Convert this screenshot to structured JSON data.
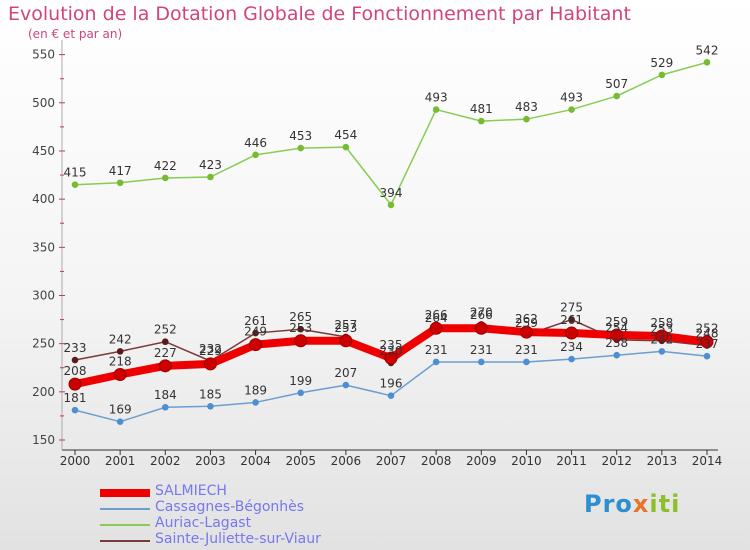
{
  "header": {
    "title": "Evolution de la Dotation Globale de Fonctionnement par Habitant",
    "subtitle": "(en € et par an)"
  },
  "logo": {
    "part1": "Pro",
    "part2": "x",
    "part3": "iti"
  },
  "chart_data": {
    "type": "line",
    "x": [
      "2000",
      "2001",
      "2002",
      "2003",
      "2004",
      "2005",
      "2006",
      "2007",
      "2008",
      "2009",
      "2010",
      "2011",
      "2012",
      "2013",
      "2014"
    ],
    "ylim": [
      150,
      560
    ],
    "yticks": [
      150,
      200,
      250,
      300,
      350,
      400,
      450,
      500,
      550
    ],
    "grid": false,
    "legend": "bottom-left",
    "series": [
      {
        "name": "Auriac-Lagast",
        "color": "#88cc55",
        "marker": "#77bb33",
        "values": [
          415,
          417,
          422,
          423,
          446,
          453,
          454,
          394,
          493,
          481,
          483,
          493,
          507,
          529,
          542
        ],
        "labels": [
          "415",
          "417",
          "422",
          "423",
          "446",
          "453",
          "454",
          "394",
          "493",
          "481",
          "483",
          "493",
          "507",
          "529",
          "542"
        ]
      },
      {
        "name": "Sainte-Juliette-sur-Viaur",
        "color": "#7b3a3a",
        "marker": "#5a1a1a",
        "values": [
          233,
          242,
          252,
          232,
          261,
          265,
          257,
          230,
          264,
          270,
          259,
          275,
          254,
          253,
          248
        ],
        "labels": [
          "233",
          "242",
          "252",
          "232",
          "261",
          "265",
          "257",
          "230",
          "264",
          "270",
          "259",
          "275",
          "254",
          "253",
          "248"
        ]
      },
      {
        "name": "Cassagnes-Bégonhès",
        "color": "#6a9fcf",
        "marker": "#4d8fd0",
        "values": [
          181,
          169,
          184,
          185,
          189,
          199,
          207,
          196,
          231,
          231,
          231,
          234,
          238,
          242,
          237
        ],
        "labels": [
          "181",
          "169",
          "184",
          "185",
          "189",
          "199",
          "207",
          "196",
          "231",
          "231",
          "231",
          "234",
          "238",
          "242",
          "237"
        ]
      },
      {
        "name": "SALMIECH",
        "color": "#ee0000",
        "marker": "#cc0000",
        "values": [
          208,
          218,
          227,
          229,
          249,
          253,
          253,
          235,
          266,
          266,
          262,
          261,
          259,
          258,
          252
        ],
        "labels": [
          "208",
          "218",
          "227",
          "229",
          "249",
          "253",
          "253",
          "235",
          "266",
          "266",
          "262",
          "261",
          "259",
          "258",
          "252"
        ]
      }
    ]
  },
  "legend": [
    {
      "label": "SALMIECH",
      "color": "#ee0000",
      "thickness": 8
    },
    {
      "label": "Cassagnes-Bégonhès",
      "color": "#6a9fcf",
      "thickness": 2
    },
    {
      "label": "Auriac-Lagast",
      "color": "#88cc55",
      "thickness": 2
    },
    {
      "label": "Sainte-Juliette-sur-Viaur",
      "color": "#7b3a3a",
      "thickness": 2
    }
  ]
}
